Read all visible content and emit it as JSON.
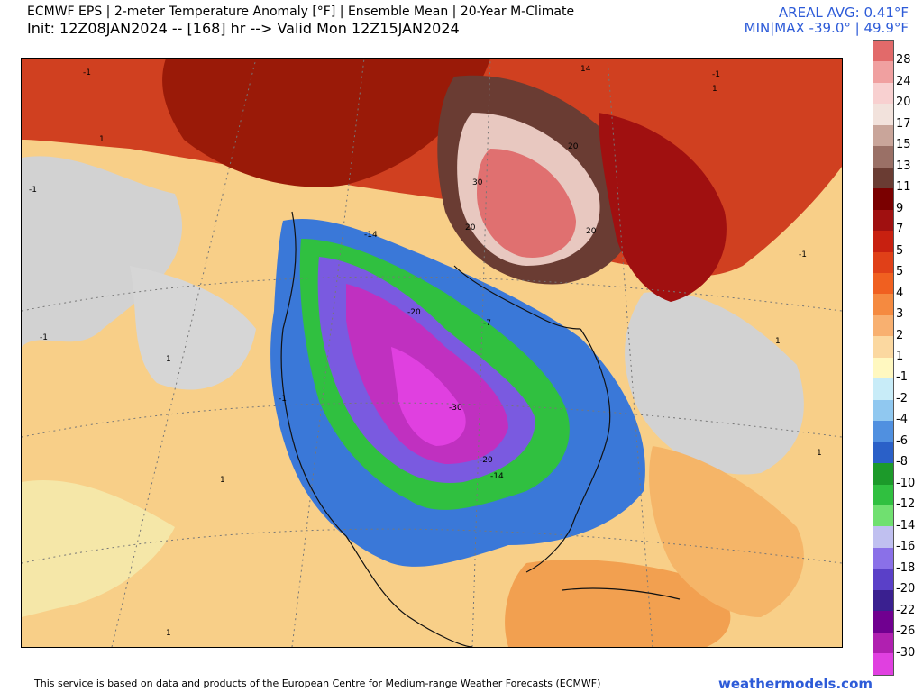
{
  "header": {
    "title_line1": "ECMWF EPS | 2-meter Temperature Anomaly [°F] | Ensemble Mean | 20-Year M-Climate",
    "title_line2": "Init: 12Z08JAN2024 -- [168] hr --> Valid Mon 12Z15JAN2024",
    "areal_avg": "AREAL AVG: 0.41°F",
    "min_max": "MIN|MAX -39.0° | 49.9°F"
  },
  "legend": {
    "labels": [
      "28",
      "24",
      "20",
      "17",
      "15",
      "13",
      "11",
      "9",
      "7",
      "5",
      "5",
      "4",
      "3",
      "2",
      "1",
      "-1",
      "-2",
      "-4",
      "-6",
      "-8",
      "-10",
      "-12",
      "-14",
      "-16",
      "-18",
      "-20",
      "-22",
      "-26",
      "-30"
    ],
    "colors": [
      "#e26a6a",
      "#f0a0a0",
      "#f8d0d0",
      "#f2e2dc",
      "#c9a59a",
      "#9a7066",
      "#6a3c33",
      "#7a0000",
      "#a01010",
      "#c82010",
      "#e04018",
      "#f06020",
      "#f58a40",
      "#f8b070",
      "#fbd8a0",
      "#fff8c0",
      "#c8ecf8",
      "#90c8f0",
      "#5090e0",
      "#2a60c8",
      "#1c9a2a",
      "#30c040",
      "#70e070",
      "#c0c0f0",
      "#8a70e8",
      "#5a40c8",
      "#3a2090",
      "#700090",
      "#b020b0",
      "#e040e0"
    ]
  },
  "map_labels": [
    {
      "text": "-1"
    },
    {
      "text": "1"
    },
    {
      "text": "-1"
    },
    {
      "text": "-1"
    },
    {
      "text": "1"
    },
    {
      "text": "1"
    },
    {
      "text": "-1"
    },
    {
      "text": "1"
    },
    {
      "text": "20"
    },
    {
      "text": "30"
    },
    {
      "text": "20"
    },
    {
      "text": "20"
    },
    {
      "text": "14"
    },
    {
      "text": "-14"
    },
    {
      "text": "-20"
    },
    {
      "text": "-30"
    },
    {
      "text": "-20"
    },
    {
      "text": "-14"
    },
    {
      "text": "-7"
    },
    {
      "text": "1"
    },
    {
      "text": "-1"
    },
    {
      "text": "1"
    },
    {
      "text": "1"
    },
    {
      "text": "-1"
    }
  ],
  "footer": {
    "disclaimer": "This service is based on data and products of the European Centre for Medium-range Weather Forecasts (ECMWF)",
    "brand": "weathermodels.com"
  }
}
